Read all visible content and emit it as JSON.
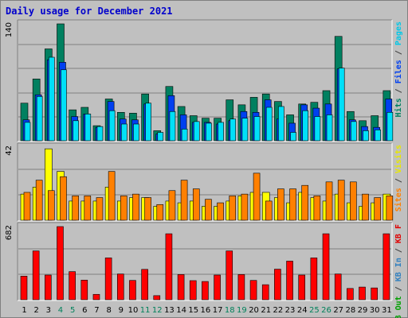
{
  "title": "Daily usage for December 2021",
  "chart_data": [
    {
      "type": "bar",
      "panel": "hits-files-pages",
      "max_label": "140",
      "legend": [
        {
          "text": "Pages",
          "color": "#00c8e8"
        },
        {
          "text": " / ",
          "color": "#404040"
        },
        {
          "text": "Files",
          "color": "#0040f0"
        },
        {
          "text": " / ",
          "color": "#404040"
        },
        {
          "text": "Hits",
          "color": "#008060"
        }
      ],
      "ylim": [
        0,
        140
      ],
      "categories": [
        "1",
        "2",
        "3",
        "4",
        "5",
        "6",
        "7",
        "8",
        "9",
        "10",
        "11",
        "12",
        "13",
        "14",
        "15",
        "16",
        "17",
        "18",
        "19",
        "20",
        "21",
        "22",
        "23",
        "24",
        "25",
        "26",
        "27",
        "28",
        "29",
        "30",
        "31"
      ],
      "series": [
        {
          "name": "Hits",
          "color": "#008060",
          "values": [
            45,
            74,
            110,
            140,
            37,
            40,
            18,
            50,
            34,
            33,
            56,
            12,
            65,
            41,
            30,
            27,
            27,
            49,
            43,
            52,
            56,
            47,
            31,
            44,
            46,
            60,
            125,
            35,
            24,
            30,
            60
          ]
        },
        {
          "name": "Files",
          "color": "#0040f0",
          "values": [
            25,
            55,
            97,
            94,
            29,
            32,
            16,
            47,
            26,
            25,
            44,
            8,
            54,
            31,
            22,
            22,
            20,
            24,
            35,
            34,
            49,
            26,
            21,
            43,
            39,
            44,
            86,
            25,
            17,
            16,
            50
          ]
        },
        {
          "name": "Pages",
          "color": "#00e0f8",
          "values": [
            22,
            53,
            100,
            85,
            24,
            32,
            17,
            36,
            20,
            20,
            45,
            10,
            35,
            14,
            23,
            21,
            22,
            26,
            27,
            29,
            40,
            41,
            10,
            36,
            29,
            31,
            87,
            23,
            12,
            13,
            34
          ]
        }
      ]
    },
    {
      "type": "bar",
      "panel": "visits-sites",
      "max_label": "42",
      "legend": [
        {
          "text": "Visits",
          "color": "#e8e800"
        },
        {
          "text": " / ",
          "color": "#404040"
        },
        {
          "text": "Sites",
          "color": "#ff8000"
        }
      ],
      "ylim": [
        0,
        42
      ],
      "categories": [
        "1",
        "2",
        "3",
        "4",
        "5",
        "6",
        "7",
        "8",
        "9",
        "10",
        "11",
        "12",
        "13",
        "14",
        "15",
        "16",
        "17",
        "18",
        "19",
        "20",
        "21",
        "22",
        "23",
        "24",
        "25",
        "26",
        "27",
        "28",
        "29",
        "30",
        "31"
      ],
      "series": [
        {
          "name": "Visits",
          "color": "#ffff00",
          "values": [
            15,
            19,
            41,
            28,
            11,
            11,
            11,
            19,
            11,
            13,
            13,
            8,
            11,
            10,
            11,
            8,
            8,
            11,
            14,
            16,
            16,
            13,
            10,
            16,
            13,
            11,
            15,
            10,
            8,
            10,
            15
          ]
        },
        {
          "name": "Sites",
          "color": "#ff8000",
          "values": [
            16,
            23,
            17,
            25,
            14,
            14,
            13,
            28,
            14,
            15,
            13,
            9,
            17,
            23,
            18,
            12,
            10,
            14,
            15,
            27,
            11,
            18,
            18,
            20,
            14,
            22,
            23,
            22,
            15,
            13,
            14
          ]
        }
      ]
    },
    {
      "type": "bar",
      "panel": "kbytes",
      "max_label": "682",
      "legend": [
        {
          "text": "KB F",
          "color": "#e00000"
        },
        {
          "text": " / ",
          "color": "#404040"
        },
        {
          "text": "KB In",
          "color": "#3080c0"
        },
        {
          "text": " / ",
          "color": "#404040"
        },
        {
          "text": "KB Out",
          "color": "#00a000"
        }
      ],
      "ylim": [
        0,
        682
      ],
      "categories": [
        "1",
        "2",
        "3",
        "4",
        "5",
        "6",
        "7",
        "8",
        "9",
        "10",
        "11",
        "12",
        "13",
        "14",
        "15",
        "16",
        "17",
        "18",
        "19",
        "20",
        "21",
        "22",
        "23",
        "24",
        "25",
        "26",
        "27",
        "28",
        "29",
        "30",
        "31"
      ],
      "series": [
        {
          "name": "KB F",
          "color": "#ff0000",
          "values": [
            220,
            455,
            230,
            682,
            262,
            183,
            50,
            390,
            240,
            180,
            283,
            38,
            615,
            235,
            178,
            170,
            230,
            455,
            235,
            180,
            140,
            285,
            360,
            230,
            390,
            615,
            240,
            105,
            118,
            110,
            615
          ]
        }
      ]
    }
  ],
  "day_labels": [
    {
      "text": "1",
      "color": "#000000"
    },
    {
      "text": "2",
      "color": "#000000"
    },
    {
      "text": "3",
      "color": "#000000"
    },
    {
      "text": "4",
      "color": "#00805a"
    },
    {
      "text": "5",
      "color": "#00805a"
    },
    {
      "text": "6",
      "color": "#000000"
    },
    {
      "text": "7",
      "color": "#000000"
    },
    {
      "text": "8",
      "color": "#000000"
    },
    {
      "text": "9",
      "color": "#000000"
    },
    {
      "text": "10",
      "color": "#000000"
    },
    {
      "text": "11",
      "color": "#00805a"
    },
    {
      "text": "12",
      "color": "#00805a"
    },
    {
      "text": "13",
      "color": "#000000"
    },
    {
      "text": "14",
      "color": "#000000"
    },
    {
      "text": "15",
      "color": "#000000"
    },
    {
      "text": "16",
      "color": "#000000"
    },
    {
      "text": "17",
      "color": "#000000"
    },
    {
      "text": "18",
      "color": "#00805a"
    },
    {
      "text": "19",
      "color": "#00805a"
    },
    {
      "text": "20",
      "color": "#000000"
    },
    {
      "text": "21",
      "color": "#000000"
    },
    {
      "text": "22",
      "color": "#000000"
    },
    {
      "text": "23",
      "color": "#000000"
    },
    {
      "text": "24",
      "color": "#000000"
    },
    {
      "text": "25",
      "color": "#00805a"
    },
    {
      "text": "26",
      "color": "#00805a"
    },
    {
      "text": "27",
      "color": "#000000"
    },
    {
      "text": "28",
      "color": "#000000"
    },
    {
      "text": "29",
      "color": "#000000"
    },
    {
      "text": "30",
      "color": "#000000"
    },
    {
      "text": "31",
      "color": "#000000"
    }
  ]
}
